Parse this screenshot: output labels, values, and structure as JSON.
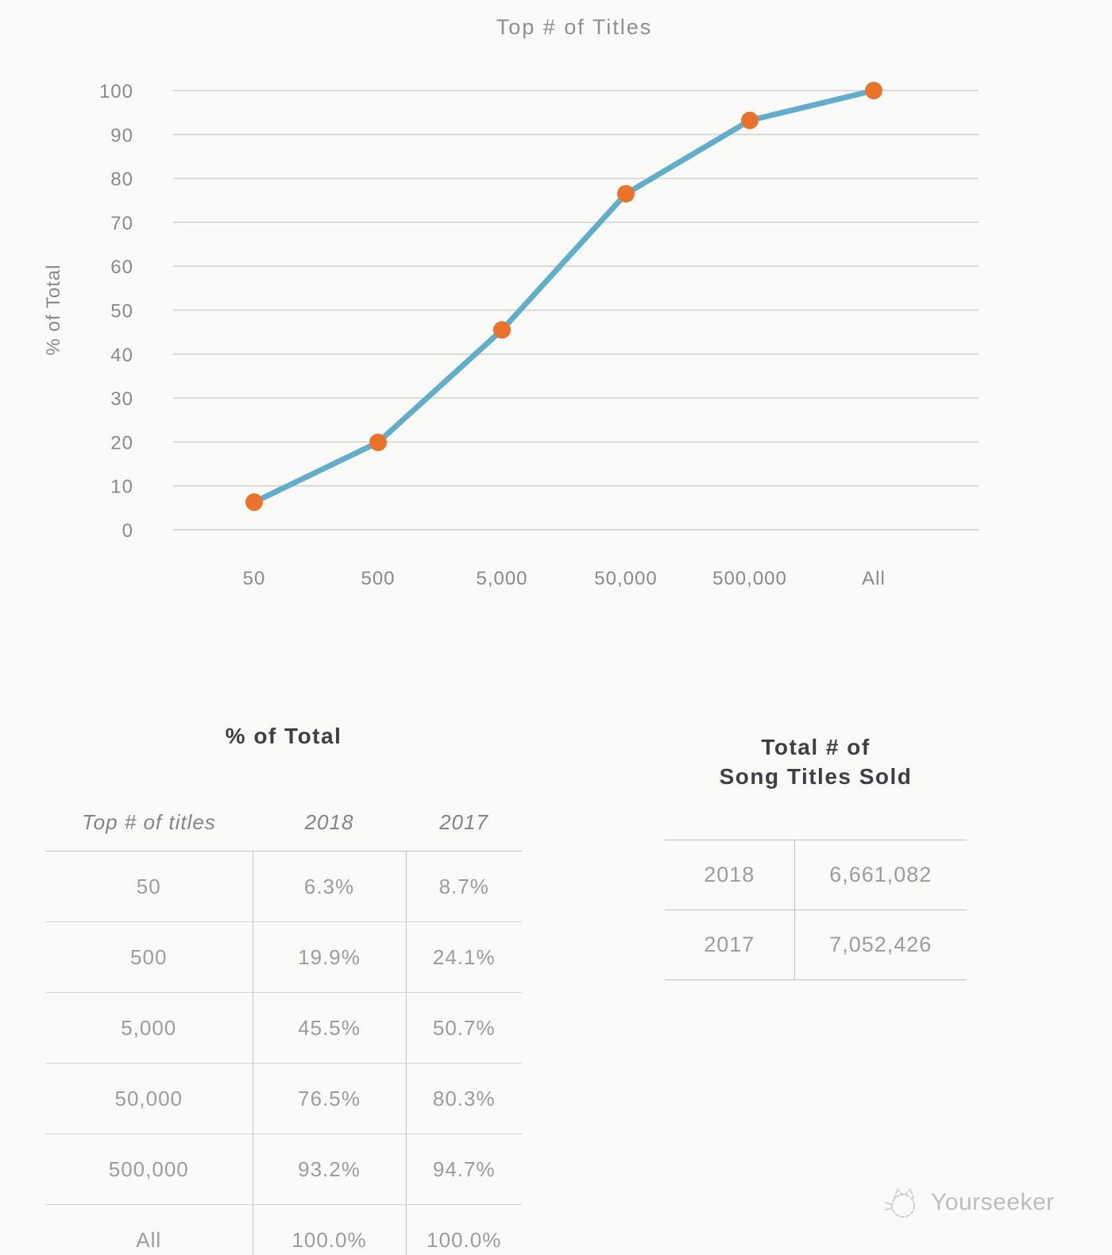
{
  "chart_data": {
    "type": "line",
    "title": "Top # of Titles",
    "xlabel": "",
    "ylabel": "% of Total",
    "categories": [
      "50",
      "500",
      "5,000",
      "50,000",
      "500,000",
      "All"
    ],
    "series": [
      {
        "name": "2018",
        "values": [
          6.3,
          19.9,
          45.5,
          76.5,
          93.2,
          100.0
        ]
      }
    ],
    "ylim": [
      0,
      100
    ],
    "yticks": [
      0,
      10,
      20,
      30,
      40,
      50,
      60,
      70,
      80,
      90,
      100
    ],
    "grid": true,
    "legend_position": "none",
    "line_color": "#5FAECB",
    "marker_color": "#EC7229",
    "grid_color": "#D6D6D6",
    "axis_text_color": "#8A8A8E",
    "title_color": "#8E8E93"
  },
  "percent_table": {
    "title": "% of Total",
    "headers": [
      "Top # of titles",
      "2018",
      "2017"
    ],
    "rows": [
      [
        "50",
        "6.3%",
        "8.7%"
      ],
      [
        "500",
        "19.9%",
        "24.1%"
      ],
      [
        "5,000",
        "45.5%",
        "50.7%"
      ],
      [
        "50,000",
        "76.5%",
        "80.3%"
      ],
      [
        "500,000",
        "93.2%",
        "94.7%"
      ],
      [
        "All",
        "100.0%",
        "100.0%"
      ]
    ]
  },
  "totals_table": {
    "title_line1": "Total # of",
    "title_line2": "Song Titles Sold",
    "rows": [
      [
        "2018",
        "6,661,082"
      ],
      [
        "2017",
        "7,052,426"
      ]
    ]
  },
  "watermark": {
    "label": "Yourseeker",
    "icon": "cat-doodle-icon"
  }
}
